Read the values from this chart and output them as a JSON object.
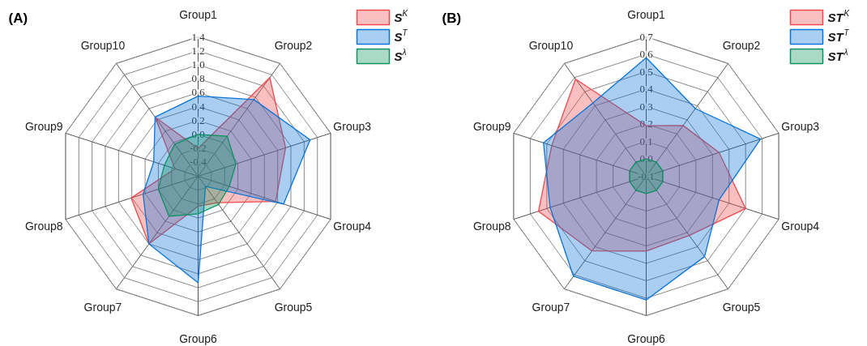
{
  "chart_data": [
    {
      "type": "radar",
      "title": "(A)",
      "categories": [
        "Group1",
        "Group2",
        "Group3",
        "Group4",
        "Group5",
        "Group6",
        "Group7",
        "Group8",
        "Group9",
        "Group10"
      ],
      "ylim": [
        -0.6,
        1.4
      ],
      "yticks": [
        {
          "value": -0.4,
          "label": "-0.4"
        },
        {
          "value": -0.2,
          "label": "-0.2"
        },
        {
          "value": 0,
          "label": "0.0"
        },
        {
          "value": 0.2,
          "label": "0.2"
        },
        {
          "value": 0.4,
          "label": "0.4"
        },
        {
          "value": 0.6,
          "label": "0.6"
        },
        {
          "value": 0.8,
          "label": "0.8"
        },
        {
          "value": 1,
          "label": "1.0"
        },
        {
          "value": 1.2,
          "label": "1.2"
        },
        {
          "value": 1.4,
          "label": "1.4"
        }
      ],
      "grid": true,
      "legend": "top right",
      "series": [
        {
          "name": "S$^{K}$",
          "color": "#f0494b",
          "values": [
            -0.2,
            1.15,
            0.72,
            0.57,
            -0.13,
            -0.17,
            0.6,
            0.41,
            -0.25,
            0.45
          ]
        },
        {
          "name": "S$^{T}$",
          "color": "#0a74da",
          "values": [
            0.55,
            0.76,
            1.09,
            0.69,
            -0.42,
            0.93,
            0.6,
            0.23,
            0.07,
            0.45
          ]
        },
        {
          "name": "S$^{λ}$",
          "color": "#0b9160",
          "values": [
            0.0,
            0.11,
            -0.03,
            -0.13,
            -0.1,
            -0.06,
            0.11,
            0.0,
            -0.09,
            -0.03
          ]
        }
      ]
    },
    {
      "type": "radar",
      "title": "(B)",
      "categories": [
        "Group1",
        "Group2",
        "Group3",
        "Group4",
        "Group5",
        "Group6",
        "Group7",
        "Group8",
        "Group9",
        "Group10"
      ],
      "ylim": [
        -0.1,
        0.7
      ],
      "yticks": [
        {
          "value": -0.1,
          "label": "-0.1"
        },
        {
          "value": 0,
          "label": "0.0"
        },
        {
          "value": 0.1,
          "label": "0.1"
        },
        {
          "value": 0.2,
          "label": "0.2"
        },
        {
          "value": 0.3,
          "label": "0.3"
        },
        {
          "value": 0.4,
          "label": "0.4"
        },
        {
          "value": 0.5,
          "label": "0.5"
        },
        {
          "value": 0.6,
          "label": "0.6"
        },
        {
          "value": 0.7,
          "label": "0.7"
        }
      ],
      "grid": true,
      "legend": "top right",
      "series": [
        {
          "name": "ST$^{K}$",
          "color": "#f0494b",
          "values": [
            0.19,
            0.26,
            0.34,
            0.5,
            0.32,
            0.33,
            0.43,
            0.55,
            0.47,
            0.59
          ]
        },
        {
          "name": "ST$^{T}$",
          "color": "#0a74da",
          "values": [
            0.58,
            0.38,
            0.59,
            0.34,
            0.47,
            0.61,
            0.61,
            0.48,
            0.52,
            0.42
          ]
        },
        {
          "name": "ST$^{λ}$",
          "color": "#0b9160",
          "values": [
            0.0,
            0.0,
            0.0,
            0.0,
            0.0,
            0.0,
            0.0,
            0.0,
            0.0,
            0.0
          ]
        }
      ]
    }
  ]
}
